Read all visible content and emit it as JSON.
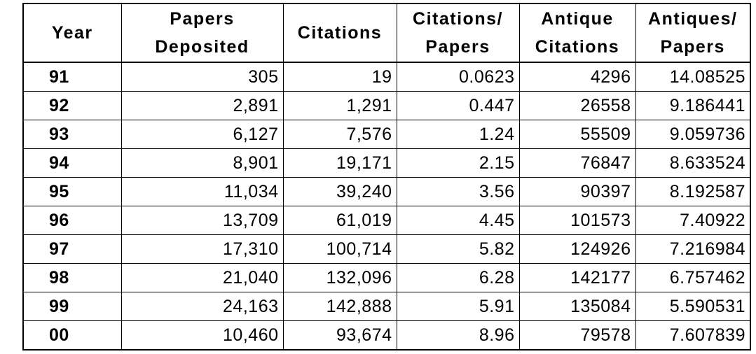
{
  "table": {
    "header": [
      [
        "Year"
      ],
      [
        "Papers",
        "Deposited"
      ],
      [
        "Citations"
      ],
      [
        "Citations/",
        "Papers"
      ],
      [
        "Antique",
        "Citations"
      ],
      [
        "Antiques/",
        "Papers"
      ]
    ],
    "rows": [
      [
        "91",
        "305",
        "19",
        "0.0623",
        "4296",
        "14.08525"
      ],
      [
        "92",
        "2,891",
        "1,291",
        "0.447",
        "26558",
        "9.186441"
      ],
      [
        "93",
        "6,127",
        "7,576",
        "1.24",
        "55509",
        "9.059736"
      ],
      [
        "94",
        "8,901",
        "19,171",
        "2.15",
        "76847",
        "8.633524"
      ],
      [
        "95",
        "11,034",
        "39,240",
        "3.56",
        "90397",
        "8.192587"
      ],
      [
        "96",
        "13,709",
        "61,019",
        "4.45",
        "101573",
        "7.40922"
      ],
      [
        "97",
        "17,310",
        "100,714",
        "5.82",
        "124926",
        "7.216984"
      ],
      [
        "98",
        "21,040",
        "132,096",
        "6.28",
        "142177",
        "6.757462"
      ],
      [
        "99",
        "24,163",
        "142,888",
        "5.91",
        "135084",
        "5.590531"
      ],
      [
        "00",
        "10,460",
        "93,674",
        "8.96",
        "79578",
        "7.607839"
      ]
    ]
  }
}
